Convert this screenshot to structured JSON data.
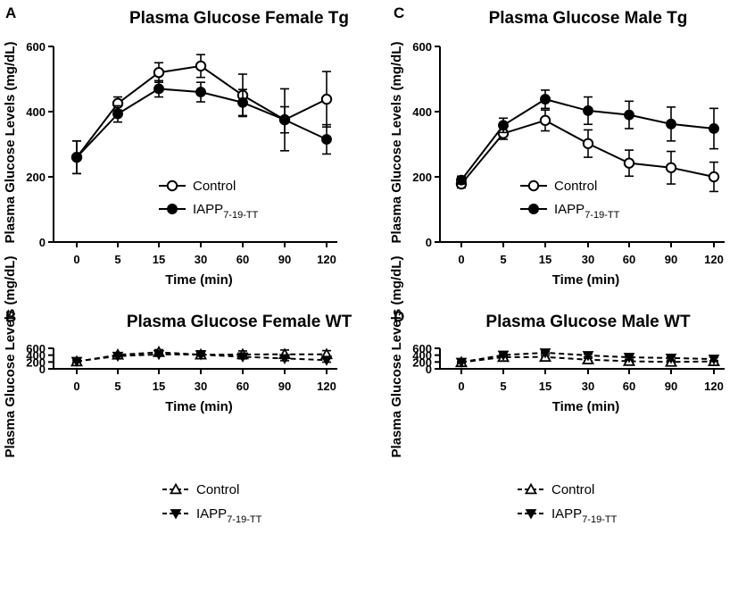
{
  "chart_data": [
    {
      "panel": "A",
      "type": "line",
      "title": "Plasma Glucose Female Tg",
      "xlabel": "Time (min)",
      "ylabel": "Plasma Glucose Levels (mg/dL)",
      "categories": [
        "0",
        "5",
        "15",
        "30",
        "60",
        "90",
        "120"
      ],
      "ylim": [
        0,
        600
      ],
      "yticks": [
        0,
        200,
        400,
        600
      ],
      "line_style": "solid",
      "series": [
        {
          "name": "Control",
          "marker": "open-circle",
          "values": [
            260,
            425,
            520,
            540,
            450,
            375,
            438
          ],
          "errors": [
            50,
            20,
            30,
            35,
            65,
            95,
            85
          ]
        },
        {
          "name": "IAPP",
          "sub": "7-19-TT",
          "marker": "filled-circle",
          "values": [
            260,
            393,
            470,
            460,
            428,
            375,
            315
          ],
          "errors": [
            50,
            25,
            25,
            30,
            40,
            40,
            45
          ]
        }
      ]
    },
    {
      "panel": "B",
      "type": "line",
      "title": "Plasma Glucose Female WT",
      "xlabel": "Time (min)",
      "ylabel": "Plasma Glucose Levels (mg/dL)",
      "categories": [
        "0",
        "5",
        "15",
        "30",
        "60",
        "90",
        "120"
      ],
      "ylim": [
        0,
        600
      ],
      "yticks": [
        0,
        200,
        400,
        600
      ],
      "line_style": "dashed",
      "series": [
        {
          "name": "Control",
          "marker": "open-triangle",
          "values": [
            210,
            408,
            485,
            412,
            418,
            425,
            422
          ],
          "errors": [
            30,
            40,
            75,
            115,
            105,
            125,
            110
          ]
        },
        {
          "name": "IAPP",
          "sub": "7-19-TT",
          "marker": "filled-triangle-down",
          "values": [
            220,
            372,
            422,
            415,
            352,
            302,
            255
          ],
          "errors": [
            30,
            20,
            25,
            45,
            60,
            65,
            60
          ]
        }
      ]
    },
    {
      "panel": "C",
      "type": "line",
      "title": "Plasma Glucose Male Tg",
      "xlabel": "Time (min)",
      "ylabel": "Plasma Glucose Levels (mg/dL)",
      "categories": [
        "0",
        "5",
        "15",
        "30",
        "60",
        "90",
        "120"
      ],
      "ylim": [
        0,
        600
      ],
      "yticks": [
        0,
        200,
        400,
        600
      ],
      "line_style": "solid",
      "series": [
        {
          "name": "Control",
          "marker": "open-circle",
          "values": [
            178,
            333,
            373,
            302,
            242,
            228,
            200
          ],
          "errors": [
            12,
            18,
            32,
            42,
            40,
            50,
            45
          ]
        },
        {
          "name": "IAPP",
          "sub": "7-19-TT",
          "marker": "filled-circle",
          "values": [
            190,
            358,
            438,
            403,
            390,
            362,
            348
          ],
          "errors": [
            12,
            22,
            28,
            42,
            42,
            52,
            62
          ]
        }
      ]
    },
    {
      "panel": "D",
      "type": "line",
      "title": "Plasma Glucose Male WT",
      "xlabel": "Time (min)",
      "ylabel": "Plasma Glucose Levels (mg/dL)",
      "categories": [
        "0",
        "5",
        "15",
        "30",
        "60",
        "90",
        "120"
      ],
      "ylim": [
        0,
        600
      ],
      "yticks": [
        0,
        200,
        400,
        600
      ],
      "line_style": "dashed",
      "series": [
        {
          "name": "Control",
          "marker": "open-triangle",
          "values": [
            188,
            342,
            345,
            268,
            222,
            200,
            218
          ],
          "errors": [
            12,
            28,
            40,
            38,
            35,
            30,
            25
          ]
        },
        {
          "name": "IAPP",
          "sub": "7-19-TT",
          "marker": "filled-triangle-down",
          "values": [
            195,
            403,
            470,
            392,
            338,
            315,
            285
          ],
          "errors": [
            12,
            10,
            30,
            40,
            55,
            55,
            52
          ]
        }
      ]
    }
  ]
}
